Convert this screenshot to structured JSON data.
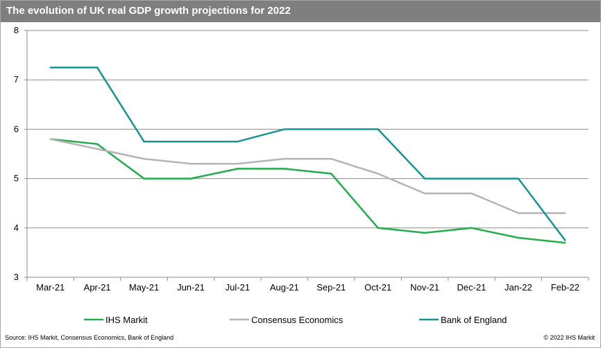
{
  "title": "The evolution of UK real GDP growth projections for 2022",
  "source": "Source: IHS Markit, Consensus Economics, Bank of England",
  "copyright": "© 2022 IHS Markit",
  "chart_data": {
    "type": "line",
    "title": "The evolution of UK real GDP growth projections for 2022",
    "xlabel": "",
    "ylabel": "",
    "ylim": [
      3,
      8
    ],
    "yticks": [
      "3",
      "4",
      "5",
      "6",
      "7",
      "8"
    ],
    "grid": true,
    "legend_position": "bottom",
    "categories": [
      "Mar-21",
      "Apr-21",
      "May-21",
      "Jun-21",
      "Jul-21",
      "Aug-21",
      "Sep-21",
      "Oct-21",
      "Nov-21",
      "Dec-21",
      "Jan-22",
      "Feb-22"
    ],
    "series": [
      {
        "name": "IHS Markit",
        "color": "#1fae4b",
        "values": [
          5.8,
          5.7,
          5.0,
          5.0,
          5.2,
          5.2,
          5.1,
          4.0,
          3.9,
          4.0,
          3.8,
          3.7
        ]
      },
      {
        "name": "Consensus Economics",
        "color": "#b4b4b4",
        "values": [
          5.8,
          5.6,
          5.4,
          5.3,
          5.3,
          5.4,
          5.4,
          5.1,
          4.7,
          4.7,
          4.3,
          4.3
        ]
      },
      {
        "name": "Bank of England",
        "color": "#159494",
        "values": [
          7.25,
          7.25,
          5.75,
          5.75,
          5.75,
          6.0,
          6.0,
          6.0,
          5.0,
          5.0,
          5.0,
          3.75
        ]
      }
    ]
  }
}
